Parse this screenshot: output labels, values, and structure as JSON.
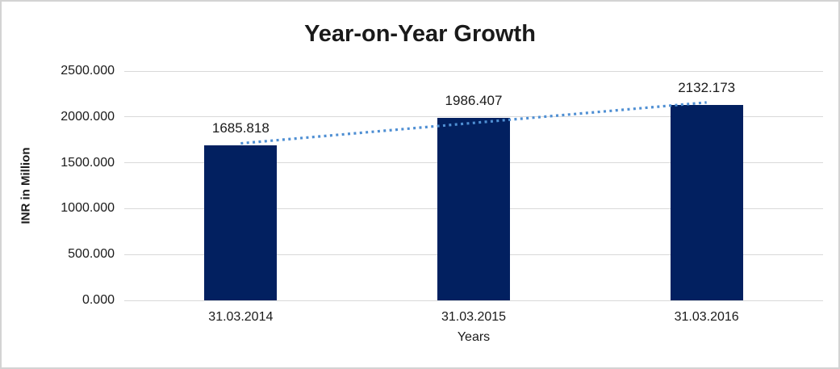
{
  "chart_data": {
    "type": "bar",
    "title": "Year-on-Year Growth",
    "categories": [
      "31.03.2014",
      "31.03.2015",
      "31.03.2016"
    ],
    "values": [
      1685.818,
      1986.407,
      2132.173
    ],
    "value_labels": [
      "1685.818",
      "1986.407",
      "2132.173"
    ],
    "xlabel": "Years",
    "ylabel": "INR in Million",
    "ylim": [
      0,
      2500
    ],
    "ytick_step": 500,
    "ytick_labels": [
      "0.000",
      "500.000",
      "1000.000",
      "1500.000",
      "2000.000",
      "2500.000"
    ],
    "grid": true,
    "legend": "none",
    "trendline": {
      "type": "linear",
      "style": "dotted"
    },
    "colors": {
      "bar": "#022060",
      "trendline": "#4f8fd3",
      "gridline": "#d9d9d9",
      "text": "#1a1a1a",
      "background": "#ffffff",
      "frame_border": "#d3d3d3"
    }
  }
}
